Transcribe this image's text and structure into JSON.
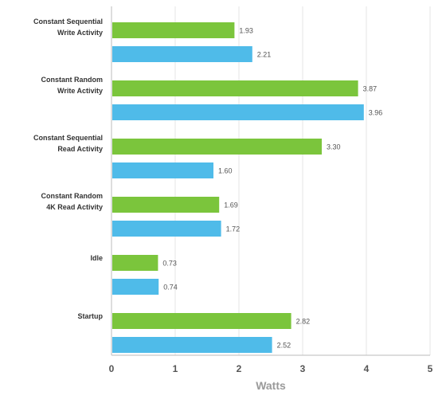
{
  "chart_data": {
    "type": "bar",
    "orientation": "horizontal",
    "categories": [
      [
        "Constant Sequential",
        "Write Activity"
      ],
      [
        "Constant Random",
        "Write Activity"
      ],
      [
        "Constant Sequential",
        "Read Activity"
      ],
      [
        "Constant Random",
        "4K Read Activity"
      ],
      [
        "Idle"
      ],
      [
        "Startup"
      ]
    ],
    "series": [
      {
        "color": "#7bc53c",
        "values": [
          1.93,
          3.87,
          3.3,
          1.69,
          0.73,
          2.82
        ],
        "labels": [
          "1.93",
          "3.87",
          "3.30",
          "1.69",
          "0.73",
          "2.82"
        ]
      },
      {
        "color": "#4fbbe9",
        "values": [
          2.21,
          3.96,
          1.6,
          1.72,
          0.74,
          2.52
        ],
        "labels": [
          "2.21",
          "3.96",
          "1.60",
          "1.72",
          "0.74",
          "2.52"
        ]
      }
    ],
    "xlabel": "Watts",
    "xlim": [
      0,
      5
    ],
    "xticks": [
      "0",
      "1",
      "2",
      "3",
      "4",
      "5"
    ],
    "grid": true,
    "legend": "none"
  }
}
